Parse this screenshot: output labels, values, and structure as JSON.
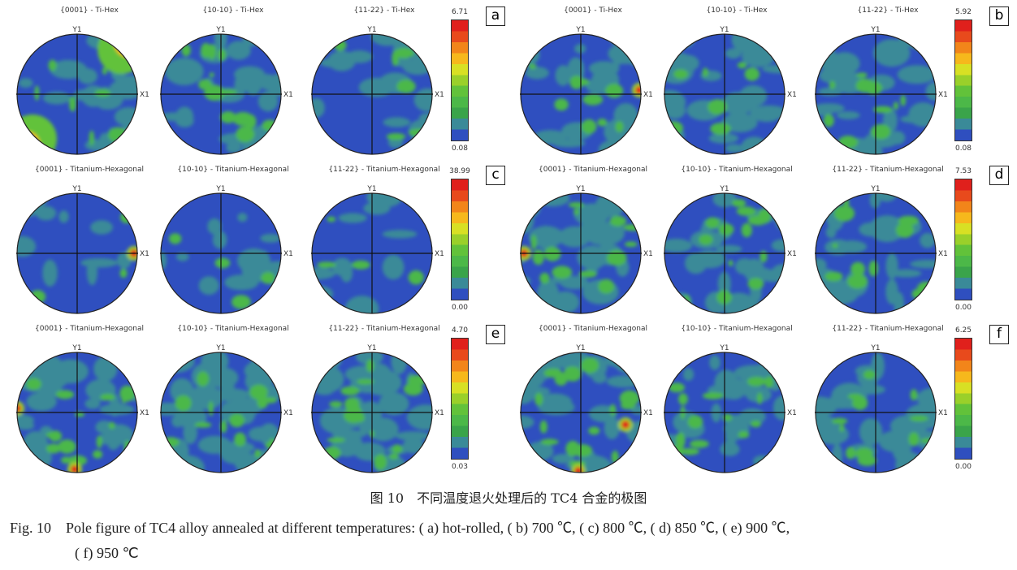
{
  "figure": {
    "colorbar_colors": [
      "#2f4fbf",
      "#3a8a98",
      "#3aa44a",
      "#4cb848",
      "#62c23a",
      "#9ad02a",
      "#d8e024",
      "#f6b81c",
      "#f2851a",
      "#e84a1c",
      "#e0201c"
    ],
    "background_color": "#2f4fbf",
    "axis_labels": {
      "y": "Y1",
      "x": "X1"
    },
    "panels": [
      {
        "label": "a",
        "max": "6.71",
        "min": "0.08",
        "titles": [
          "{0001} - Ti-Hex",
          "{10-10} - Ti-Hex",
          "{11-22} - Ti-Hex"
        ]
      },
      {
        "label": "b",
        "max": "5.92",
        "min": "0.08",
        "titles": [
          "{0001} - Ti-Hex",
          "{10-10} - Ti-Hex",
          "{11-22} - Ti-Hex"
        ]
      },
      {
        "label": "c",
        "max": "38.99",
        "min": "0.00",
        "titles": [
          "{0001} - Titanium-Hexagonal",
          "{10-10} - Titanium-Hexagonal",
          "{11-22} - Titanium-Hexagonal"
        ]
      },
      {
        "label": "d",
        "max": "7.53",
        "min": "0.00",
        "titles": [
          "{0001} - Titanium-Hexagonal",
          "{10-10} - Titanium-Hexagonal",
          "{11-22} - Titanium-Hexagonal"
        ]
      },
      {
        "label": "e",
        "max": "4.70",
        "min": "0.03",
        "titles": [
          "{0001} - Titanium-Hexagonal",
          "{10-10} - Titanium-Hexagonal",
          "{11-22} - Titanium-Hexagonal"
        ]
      },
      {
        "label": "f",
        "max": "6.25",
        "min": "0.00",
        "titles": [
          "{0001} - Titanium-Hexagonal",
          "{10-10} - Titanium-Hexagonal",
          "{11-22} - Titanium-Hexagonal"
        ]
      }
    ]
  },
  "caption": {
    "cn": "图 10　不同温度退火处理后的 TC4 合金的极图",
    "en_line1": "Fig. 10　Pole figure of TC4 alloy annealed at different temperatures: ( a)  hot-rolled, ( b)  700 ℃, ( c)  800 ℃, ( d)  850 ℃, ( e)  900 ℃,",
    "en_line2": "( f)  950 ℃"
  }
}
